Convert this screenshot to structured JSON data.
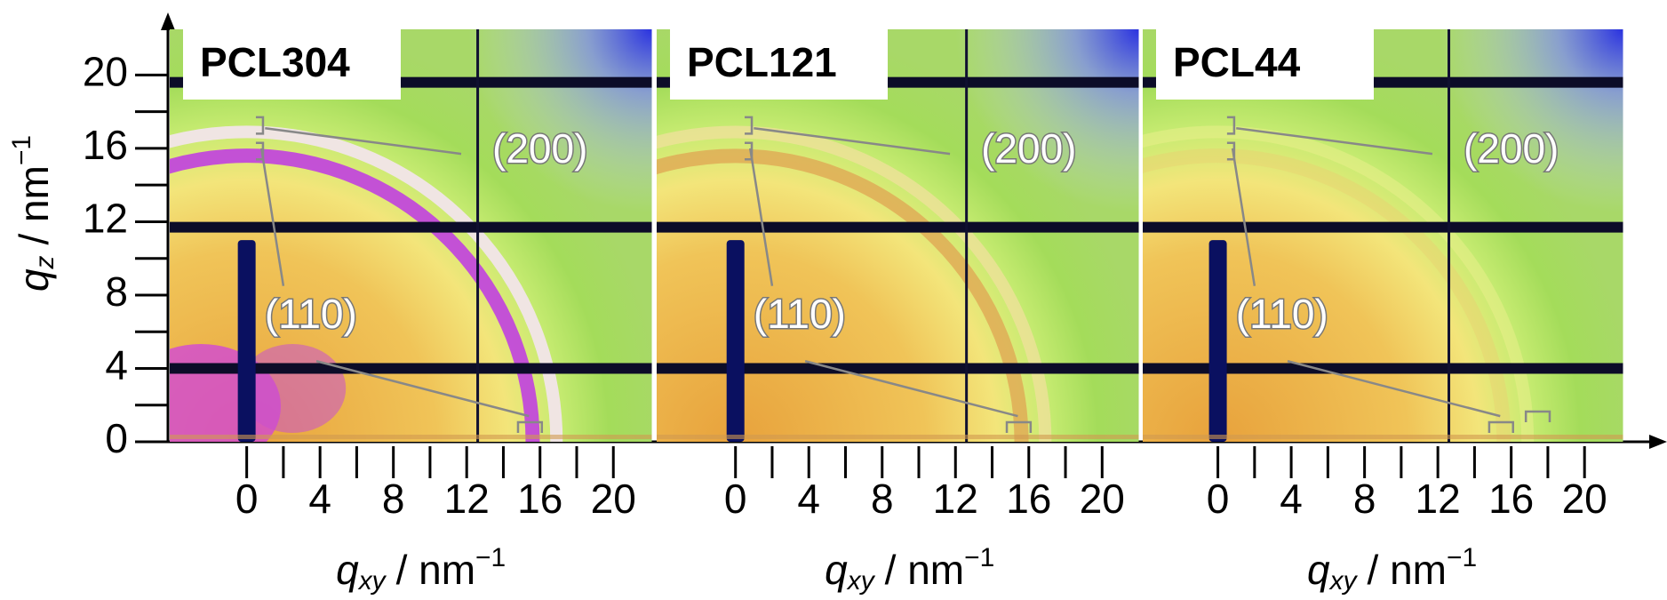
{
  "chart_data": [
    {
      "type": "image",
      "title": "PCL304",
      "xlim": [
        -4.2,
        22.1
      ],
      "ylim": [
        0,
        22.5
      ],
      "xticks": [
        0,
        4,
        8,
        12,
        16,
        20
      ],
      "xticks_minor": [
        2,
        6,
        10,
        14,
        18
      ],
      "yticks": [
        0,
        4,
        8,
        12,
        16,
        20
      ],
      "yticks_minor": [
        2,
        6,
        10,
        14,
        18
      ],
      "xlabel": {
        "var": "q",
        "sub": "xy",
        "unit": "/ nm",
        "sup": "−1"
      },
      "ylabel": {
        "var": "q",
        "sub": "z",
        "unit": "/ nm",
        "sup": "−1"
      },
      "annotations": [
        "(200)",
        "(110)"
      ]
    },
    {
      "type": "image",
      "title": "PCL121",
      "xlim": [
        -4.3,
        22.0
      ],
      "ylim": [
        0,
        22.5
      ],
      "xticks": [
        0,
        4,
        8,
        12,
        16,
        20
      ],
      "xticks_minor": [
        2,
        6,
        10,
        14,
        18
      ],
      "xlabel": {
        "var": "q",
        "sub": "xy",
        "unit": "/ nm",
        "sup": "−1"
      },
      "annotations": [
        "(200)",
        "(110)"
      ]
    },
    {
      "type": "image",
      "title": "PCL44",
      "xlim": [
        -4.1,
        22.1
      ],
      "ylim": [
        0,
        22.5
      ],
      "xticks": [
        0,
        4,
        8,
        12,
        16,
        20
      ],
      "xticks_minor": [
        2,
        6,
        10,
        14,
        18
      ],
      "xlabel": {
        "var": "q",
        "sub": "xy",
        "unit": "/ nm",
        "sup": "−1"
      },
      "annotations": [
        "(200)",
        "(110)"
      ]
    }
  ]
}
